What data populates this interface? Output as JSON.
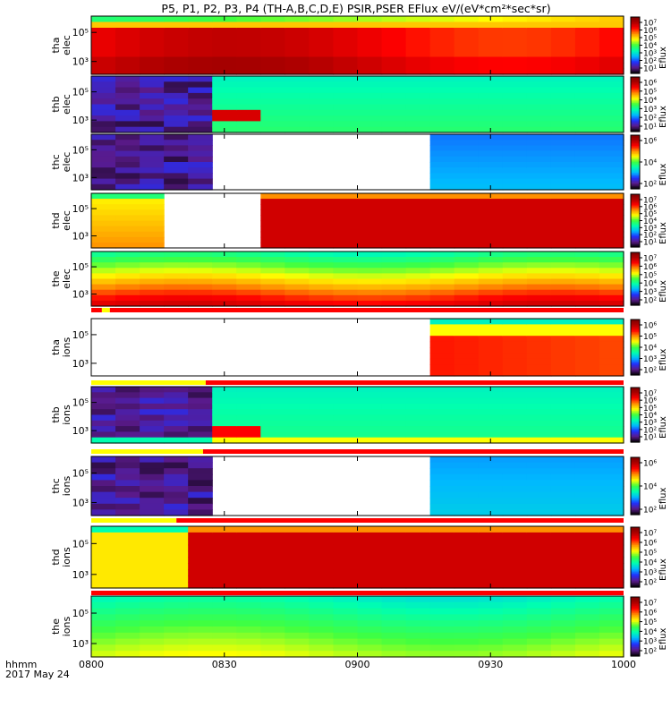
{
  "title": "P5, P1, P2, P3, P4 (TH-A,B,C,D,E) PSIR,PSER EFlux eV/(eV*cm²*sec*sr)",
  "x_axis": {
    "ticks": [
      "0800",
      "0830",
      "0900",
      "0930",
      "1000"
    ],
    "label_line1": "hhmm",
    "label_line2": "2017 May 24"
  },
  "colorbar_label": "Eflux",
  "colors": {
    "fill_value": "#ffffff",
    "spectrum": [
      "#000000",
      "#5a1a8a",
      "#2030ff",
      "#00b8ff",
      "#00ffb0",
      "#40ff40",
      "#ffff00",
      "#ff9000",
      "#ff0000",
      "#b00000",
      "#7a0000"
    ]
  },
  "chart_data": [
    {
      "type": "heatmap",
      "probe": "tha",
      "species": "elec",
      "label1": "tha",
      "label2": "elec",
      "y_ticks": [
        "10⁵",
        "10³"
      ],
      "cbar_ticks": [
        "10⁷",
        "10⁶",
        "10⁵",
        "10⁴",
        "10³",
        "10²",
        "10¹"
      ]
    },
    {
      "type": "heatmap",
      "probe": "thb",
      "species": "elec",
      "label1": "thb",
      "label2": "elec",
      "y_ticks": [
        "10⁵",
        "10³"
      ],
      "cbar_ticks": [
        "10⁶",
        "10⁵",
        "10⁴",
        "10³",
        "10²",
        "10¹"
      ]
    },
    {
      "type": "heatmap",
      "probe": "thc",
      "species": "elec",
      "label1": "thc",
      "label2": "elec",
      "y_ticks": [
        "10⁵",
        "10³"
      ],
      "cbar_ticks": [
        "10⁶",
        "10⁴",
        "10²"
      ]
    },
    {
      "type": "heatmap",
      "probe": "thd",
      "species": "elec",
      "label1": "thd",
      "label2": "elec",
      "y_ticks": [
        "10⁵",
        "10³"
      ],
      "cbar_ticks": [
        "10⁷",
        "10⁶",
        "10⁵",
        "10⁴",
        "10³",
        "10²",
        "10¹"
      ]
    },
    {
      "type": "heatmap",
      "probe": "the",
      "species": "elec",
      "label1": "the",
      "label2": "elec",
      "y_ticks": [
        "10⁵",
        "10³"
      ],
      "cbar_ticks": [
        "10⁷",
        "10⁶",
        "10⁵",
        "10⁴",
        "10³",
        "10²"
      ]
    },
    {
      "type": "heatmap",
      "probe": "tha",
      "species": "ions",
      "label1": "tha",
      "label2": "ions",
      "y_ticks": [
        "10⁵",
        "10³"
      ],
      "cbar_ticks": [
        "10⁶",
        "10⁵",
        "10⁴",
        "10³",
        "10²"
      ]
    },
    {
      "type": "heatmap",
      "probe": "thb",
      "species": "ions",
      "label1": "thb",
      "label2": "ions",
      "y_ticks": [
        "10⁵",
        "10³"
      ],
      "cbar_ticks": [
        "10⁷",
        "10⁶",
        "10⁵",
        "10⁴",
        "10³",
        "10²",
        "10¹"
      ]
    },
    {
      "type": "heatmap",
      "probe": "thc",
      "species": "ions",
      "label1": "thc",
      "label2": "ions",
      "y_ticks": [
        "10⁵",
        "10³"
      ],
      "cbar_ticks": [
        "10⁶",
        "10⁴",
        "10²"
      ]
    },
    {
      "type": "heatmap",
      "probe": "thd",
      "species": "ions",
      "label1": "thd",
      "label2": "ions",
      "y_ticks": [
        "10⁵",
        "10³"
      ],
      "cbar_ticks": [
        "10⁷",
        "10⁶",
        "10⁵",
        "10⁴",
        "10³",
        "10²"
      ]
    },
    {
      "type": "heatmap",
      "probe": "the",
      "species": "ions",
      "label1": "the",
      "label2": "ions",
      "y_ticks": [
        "10⁵",
        "10³"
      ],
      "cbar_ticks": [
        "10⁷",
        "10⁶",
        "10⁵",
        "10⁴",
        "10³",
        "10²"
      ]
    }
  ]
}
